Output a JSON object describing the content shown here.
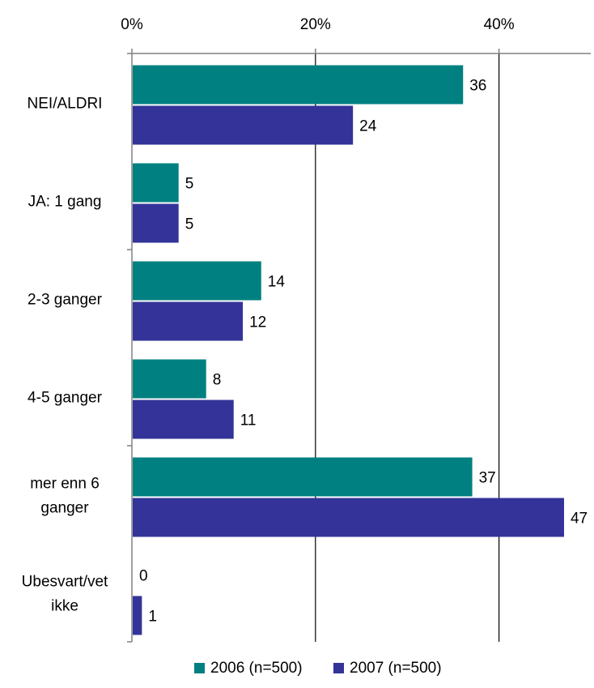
{
  "chart_data": {
    "type": "bar",
    "orientation": "horizontal",
    "title": "",
    "xlabel": "",
    "ylabel": "",
    "xlim": [
      0,
      50
    ],
    "x_ticks": [
      "0%",
      "20%",
      "40%"
    ],
    "x_tick_values": [
      0,
      20,
      40
    ],
    "grid": true,
    "legend_position": "bottom",
    "categories": [
      [
        "NEI/ALDRI"
      ],
      [
        "JA: 1 gang"
      ],
      [
        "2-3 ganger"
      ],
      [
        "4-5 ganger"
      ],
      [
        "mer enn 6",
        "ganger"
      ],
      [
        "Ubesvart/vet",
        "ikke"
      ]
    ],
    "series": [
      {
        "name": "2006 (n=500)",
        "color": "#008080",
        "values": [
          36,
          5,
          14,
          8,
          37,
          0
        ]
      },
      {
        "name": "2007 (n=500)",
        "color": "#333399",
        "values": [
          24,
          5,
          12,
          11,
          47,
          1
        ]
      }
    ]
  }
}
